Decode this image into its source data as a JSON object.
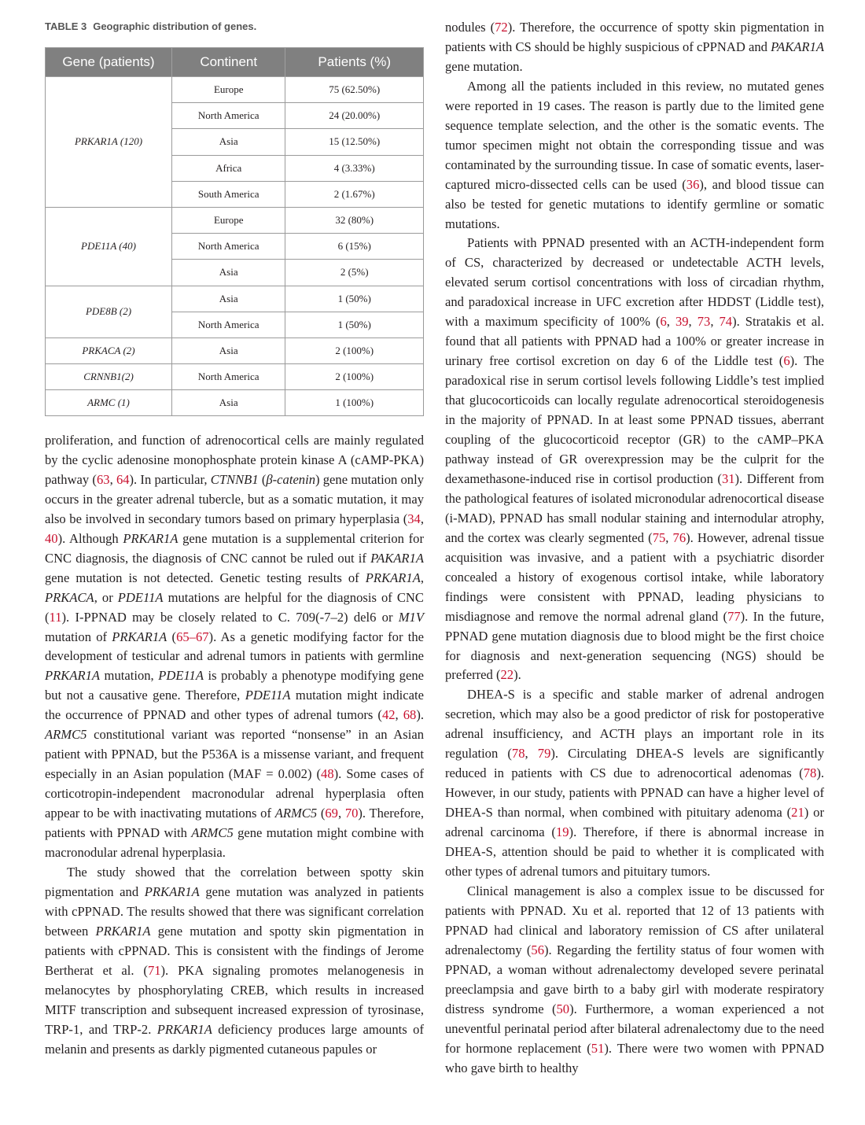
{
  "table": {
    "label": "TABLE 3",
    "title": "Geographic distribution of genes.",
    "headers": [
      "Gene (patients)",
      "Continent",
      "Patients (%)"
    ],
    "groups": [
      {
        "gene": "PRKAR1A (120)",
        "rows": [
          [
            "Europe",
            "75 (62.50%)"
          ],
          [
            "North America",
            "24 (20.00%)"
          ],
          [
            "Asia",
            "15 (12.50%)"
          ],
          [
            "Africa",
            "4 (3.33%)"
          ],
          [
            "South America",
            "2 (1.67%)"
          ]
        ]
      },
      {
        "gene": "PDE11A (40)",
        "rows": [
          [
            "Europe",
            "32 (80%)"
          ],
          [
            "North America",
            "6 (15%)"
          ],
          [
            "Asia",
            "2 (5%)"
          ]
        ]
      },
      {
        "gene": "PDE8B (2)",
        "rows": [
          [
            "Asia",
            "1 (50%)"
          ],
          [
            "North America",
            "1 (50%)"
          ]
        ]
      },
      {
        "gene": "PRKACA (2)",
        "rows": [
          [
            "Asia",
            "2 (100%)"
          ]
        ]
      },
      {
        "gene": "CRNNB1(2)",
        "rows": [
          [
            "North America",
            "2 (100%)"
          ]
        ]
      },
      {
        "gene": "ARMC (1)",
        "rows": [
          [
            "Asia",
            "1 (100%)"
          ]
        ]
      }
    ]
  },
  "left_column": [
    {
      "indent": false,
      "segments": [
        [
          "proliferation, and function of adrenocortical cells are mainly regulated by the cyclic adenosine monophosphate protein kinase A (cAMP-PKA) pathway (",
          ""
        ],
        [
          "63",
          "r"
        ],
        [
          ", ",
          ""
        ],
        [
          "64",
          "r"
        ],
        [
          "). In particular, ",
          ""
        ],
        [
          "CTNNB1",
          "i"
        ],
        [
          " (",
          ""
        ],
        [
          "β-catenin",
          "i"
        ],
        [
          ") gene mutation only occurs in the greater adrenal tubercle, but as a somatic mutation, it may also be involved in secondary tumors based on primary hyperplasia (",
          ""
        ],
        [
          "34",
          "r"
        ],
        [
          ", ",
          ""
        ],
        [
          "40",
          "r"
        ],
        [
          "). Although ",
          ""
        ],
        [
          "PRKAR1A",
          "i"
        ],
        [
          " gene mutation is a supplemental criterion for CNC diagnosis, the diagnosis of CNC cannot be ruled out if ",
          ""
        ],
        [
          "PAKAR1A",
          "i"
        ],
        [
          " gene mutation is not detected. Genetic testing results of ",
          ""
        ],
        [
          "PRKAR1A",
          "i"
        ],
        [
          ", ",
          ""
        ],
        [
          "PRKACA",
          "i"
        ],
        [
          ", or ",
          ""
        ],
        [
          "PDE11A",
          "i"
        ],
        [
          " mutations are helpful for the diagnosis of CNC (",
          ""
        ],
        [
          "11",
          "r"
        ],
        [
          "). I-PPNAD may be closely related to C. 709(-7–2) del6 or ",
          ""
        ],
        [
          "M1V",
          "i"
        ],
        [
          " mutation of ",
          ""
        ],
        [
          "PRKAR1A",
          "i"
        ],
        [
          " (",
          ""
        ],
        [
          "65–67",
          "r"
        ],
        [
          "). As a genetic modifying factor for the development of testicular and adrenal tumors in patients with germline ",
          ""
        ],
        [
          "PRKAR1A",
          "i"
        ],
        [
          " mutation, ",
          ""
        ],
        [
          "PDE11A",
          "i"
        ],
        [
          " is probably a phenotype modifying gene but not a causative gene. Therefore, ",
          ""
        ],
        [
          "PDE11A",
          "i"
        ],
        [
          " mutation might indicate the occurrence of PPNAD and other types of adrenal tumors (",
          ""
        ],
        [
          "42",
          "r"
        ],
        [
          ", ",
          ""
        ],
        [
          "68",
          "r"
        ],
        [
          "). ",
          ""
        ],
        [
          "ARMC5",
          "i"
        ],
        [
          " constitutional variant was reported “nonsense” in an Asian patient with PPNAD, but the P536A is a missense variant, and frequent especially in an Asian population (MAF = 0.002) (",
          ""
        ],
        [
          "48",
          "r"
        ],
        [
          "). Some cases of corticotropin-independent macronodular adrenal hyperplasia often appear to be with inactivating mutations of ",
          ""
        ],
        [
          "ARMC5",
          "i"
        ],
        [
          " (",
          ""
        ],
        [
          "69",
          "r"
        ],
        [
          ", ",
          ""
        ],
        [
          "70",
          "r"
        ],
        [
          "). Therefore, patients with PPNAD with ",
          ""
        ],
        [
          "ARMC5",
          "i"
        ],
        [
          " gene mutation might combine with macronodular adrenal hyperplasia.",
          ""
        ]
      ]
    },
    {
      "indent": true,
      "segments": [
        [
          "The study showed that the correlation between spotty skin pigmentation and ",
          ""
        ],
        [
          "PRKAR1A",
          "i"
        ],
        [
          " gene mutation was analyzed in patients with cPPNAD. The results showed that there was significant correlation between ",
          ""
        ],
        [
          "PRKAR1A",
          "i"
        ],
        [
          " gene mutation and spotty skin pigmentation in patients with cPPNAD. This is consistent with the findings of Jerome Bertherat et al. (",
          ""
        ],
        [
          "71",
          "r"
        ],
        [
          "). PKA signaling promotes melanogenesis in melanocytes by phosphorylating CREB, which results in increased MITF transcription and subsequent increased expression of tyrosinase, TRP-1, and TRP-2. ",
          ""
        ],
        [
          "PRKAR1A",
          "i"
        ],
        [
          " deficiency produces large amounts of melanin and presents as darkly pigmented cutaneous papules or",
          ""
        ]
      ]
    }
  ],
  "right_column": [
    {
      "indent": false,
      "segments": [
        [
          "nodules (",
          ""
        ],
        [
          "72",
          "r"
        ],
        [
          "). Therefore, the occurrence of spotty skin pigmentation in patients with CS should be highly suspicious of cPPNAD and ",
          ""
        ],
        [
          "PAKAR1A",
          "i"
        ],
        [
          " gene mutation.",
          ""
        ]
      ]
    },
    {
      "indent": true,
      "segments": [
        [
          "Among all the patients included in this review, no mutated genes were reported in 19 cases. The reason is partly due to the limited gene sequence template selection, and the other is the somatic events. The tumor specimen might not obtain the corresponding tissue and was contaminated by the surrounding tissue. In case of somatic events, laser-captured micro-dissected cells can be used (",
          ""
        ],
        [
          "36",
          "r"
        ],
        [
          "), and blood tissue can also be tested for genetic mutations to identify germline or somatic mutations.",
          ""
        ]
      ]
    },
    {
      "indent": true,
      "segments": [
        [
          "Patients with PPNAD presented with an ACTH-independent form of CS, characterized by decreased or undetectable ACTH levels, elevated serum cortisol concentrations with loss of circadian rhythm, and paradoxical increase in UFC excretion after HDDST (Liddle test), with a maximum specificity of 100% (",
          ""
        ],
        [
          "6",
          "r"
        ],
        [
          ", ",
          ""
        ],
        [
          "39",
          "r"
        ],
        [
          ", ",
          ""
        ],
        [
          "73",
          "r"
        ],
        [
          ", ",
          ""
        ],
        [
          "74",
          "r"
        ],
        [
          "). Stratakis et al. found that all patients with PPNAD had a 100% or greater increase in urinary free cortisol excretion on day 6 of the Liddle test (",
          ""
        ],
        [
          "6",
          "r"
        ],
        [
          "). The paradoxical rise in serum cortisol levels following Liddle’s test implied that glucocorticoids can locally regulate adrenocortical steroidogenesis in the majority of PPNAD. In at least some PPNAD tissues, aberrant coupling of the glucocorticoid receptor (GR) to the cAMP–PKA pathway instead of GR overexpression may be the culprit for the dexamethasone-induced rise in cortisol production (",
          ""
        ],
        [
          "31",
          "r"
        ],
        [
          "). Different from the pathological features of isolated micronodular adrenocortical disease (i-MAD), PPNAD has small nodular staining and internodular atrophy, and the cortex was clearly segmented (",
          ""
        ],
        [
          "75",
          "r"
        ],
        [
          ", ",
          ""
        ],
        [
          "76",
          "r"
        ],
        [
          "). However, adrenal tissue acquisition was invasive, and a patient with a psychiatric disorder concealed a history of exogenous cortisol intake, while laboratory findings were consistent with PPNAD, leading physicians to misdiagnose and remove the normal adrenal gland (",
          ""
        ],
        [
          "77",
          "r"
        ],
        [
          "). In the future, PPNAD gene mutation diagnosis due to blood might be the first choice for diagnosis and next-generation sequencing (NGS) should be preferred (",
          ""
        ],
        [
          "22",
          "r"
        ],
        [
          ").",
          ""
        ]
      ]
    },
    {
      "indent": true,
      "segments": [
        [
          "DHEA-S is a specific and stable marker of adrenal androgen secretion, which may also be a good predictor of risk for postoperative adrenal insufficiency, and ACTH plays an important role in its regulation (",
          ""
        ],
        [
          "78",
          "r"
        ],
        [
          ", ",
          ""
        ],
        [
          "79",
          "r"
        ],
        [
          "). Circulating DHEA-S levels are significantly reduced in patients with CS due to adrenocortical adenomas (",
          ""
        ],
        [
          "78",
          "r"
        ],
        [
          "). However, in our study, patients with PPNAD can have a higher level of DHEA-S than normal, when combined with pituitary adenoma (",
          ""
        ],
        [
          "21",
          "r"
        ],
        [
          ") or adrenal carcinoma (",
          ""
        ],
        [
          "19",
          "r"
        ],
        [
          "). Therefore, if there is abnormal increase in DHEA-S, attention should be paid to whether it is complicated with other types of adrenal tumors and pituitary tumors.",
          ""
        ]
      ]
    },
    {
      "indent": true,
      "segments": [
        [
          "Clinical management is also a complex issue to be discussed for patients with PPNAD. Xu et al. reported that 12 of 13 patients with PPNAD had clinical and laboratory remission of CS after unilateral adrenalectomy (",
          ""
        ],
        [
          "56",
          "r"
        ],
        [
          "). Regarding the fertility status of four women with PPNAD, a woman without adrenalectomy developed severe perinatal preeclampsia and gave birth to a baby girl with moderate respiratory distress syndrome (",
          ""
        ],
        [
          "50",
          "r"
        ],
        [
          "). Furthermore, a woman experienced a not uneventful perinatal period after bilateral adrenalectomy due to the need for hormone replacement (",
          ""
        ],
        [
          "51",
          "r"
        ],
        [
          "). There were two women with PPNAD who gave birth to healthy",
          ""
        ]
      ]
    }
  ],
  "colors": {
    "reference": "#c8102e",
    "table_header": "#808080"
  }
}
